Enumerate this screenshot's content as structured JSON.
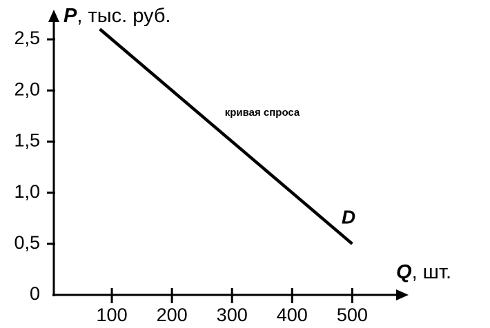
{
  "chart_data": {
    "type": "line",
    "y_label": {
      "symbol": "P",
      "unit": ", тыс. руб."
    },
    "x_label": {
      "symbol": "Q",
      "unit": ", шт."
    },
    "annotations": [
      {
        "text": "кривая спроса"
      },
      {
        "text": "D"
      }
    ],
    "x": [
      80,
      500
    ],
    "series": [
      {
        "color": "#000000",
        "values": [
          2.6,
          0.5
        ]
      }
    ],
    "xlim": [
      0,
      580
    ],
    "ylim": [
      0,
      2.75
    ],
    "xticks": [
      100,
      200,
      300,
      400,
      500
    ],
    "yticks": [
      0,
      {
        "value": 0.5,
        "label": "0,5"
      },
      {
        "value": 1.0,
        "label": "1,0"
      },
      {
        "value": 1.5,
        "label": "1,5"
      },
      {
        "value": 2.0,
        "label": "2,0"
      },
      {
        "value": 2.5,
        "label": "2,5"
      }
    ],
    "grid": false
  }
}
